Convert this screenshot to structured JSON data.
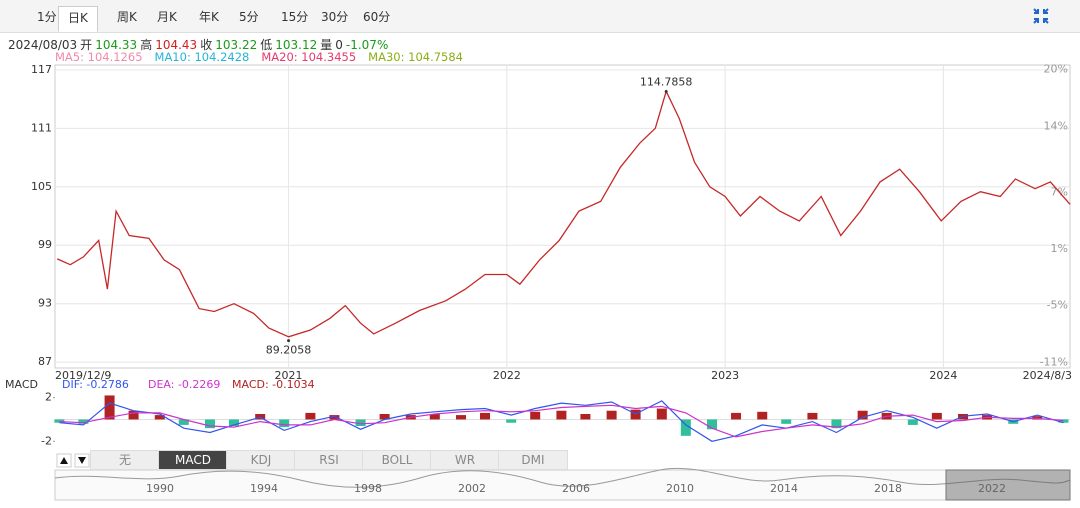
{
  "period_tabs": [
    "1分",
    "日K",
    "周K",
    "月K",
    "年K",
    "5分",
    "15分",
    "30分",
    "60分"
  ],
  "quote": {
    "date": "2024/08/03",
    "items": [
      {
        "label": "开",
        "value": 104.33,
        "color": "#1a9a1a"
      },
      {
        "label": "高",
        "value": 104.43,
        "color": "#d42020"
      },
      {
        "label": "收",
        "value": 103.22,
        "color": "#1a9a1a"
      },
      {
        "label": "低",
        "value": 103.12,
        "color": "#1a9a1a"
      },
      {
        "label": "量",
        "value": 0,
        "color": "#333333"
      }
    ],
    "change": "-1.07%",
    "change_color": "#1a9a1a"
  },
  "ma": [
    {
      "label": "MA5: 104.1265",
      "color": "#f08aa8"
    },
    {
      "label": "MA10: 104.2428",
      "color": "#27b5d6"
    },
    {
      "label": "MA20: 104.3455",
      "color": "#e8386d"
    },
    {
      "label": "MA30: 104.7584",
      "color": "#8aae14"
    }
  ],
  "chart_data": [
    {
      "type": "line",
      "x": [
        2019.94,
        2020.0,
        2020.06,
        2020.13,
        2020.17,
        2020.21,
        2020.27,
        2020.36,
        2020.43,
        2020.5,
        2020.59,
        2020.66,
        2020.75,
        2020.84,
        2020.91,
        2021.0,
        2021.1,
        2021.19,
        2021.26,
        2021.33,
        2021.39,
        2021.49,
        2021.6,
        2021.72,
        2021.81,
        2021.9,
        2022.0,
        2022.06,
        2022.15,
        2022.24,
        2022.33,
        2022.43,
        2022.52,
        2022.61,
        2022.68,
        2022.73,
        2022.79,
        2022.86,
        2022.93,
        2023.0,
        2023.07,
        2023.16,
        2023.25,
        2023.34,
        2023.44,
        2023.53,
        2023.62,
        2023.71,
        2023.8,
        2023.89,
        2023.99,
        2024.08,
        2024.17,
        2024.26,
        2024.33,
        2024.42,
        2024.49,
        2024.58
      ],
      "series": [
        {
          "color": "#c62828",
          "values": [
            97.6,
            97.0,
            97.8,
            99.5,
            94.5,
            102.5,
            100.0,
            99.7,
            97.5,
            96.5,
            92.5,
            92.2,
            93.0,
            92.0,
            90.5,
            89.6,
            90.3,
            91.5,
            92.8,
            91.0,
            89.9,
            91.0,
            92.3,
            93.3,
            94.5,
            96.0,
            96.0,
            95.0,
            97.5,
            99.5,
            102.5,
            103.5,
            107.0,
            109.5,
            111.0,
            114.8,
            112.0,
            107.5,
            105.0,
            104.0,
            102.0,
            104.0,
            102.5,
            101.5,
            104.0,
            100.0,
            102.5,
            105.5,
            106.8,
            104.5,
            101.5,
            103.5,
            104.5,
            104.0,
            105.8,
            104.8,
            105.5,
            103.2
          ]
        }
      ],
      "xlim": [
        2019.93,
        2024.58
      ],
      "xticks": [
        {
          "value": 2019.94,
          "label": "2019/12/9"
        },
        2021,
        2022,
        2023,
        2024,
        {
          "value": 2024.58,
          "label": "2024/8/3"
        }
      ],
      "ylim": [
        86.4,
        117.5
      ],
      "yticks": [
        117,
        111,
        105,
        99,
        93,
        87
      ],
      "y2lim": [
        -11.6,
        20.5
      ],
      "y2ticks": [
        {
          "value": 20,
          "label": "20%"
        },
        {
          "value": 14,
          "label": "14%"
        },
        {
          "value": 7,
          "label": "7%"
        },
        {
          "value": 1,
          "label": "1%"
        },
        {
          "value": -5,
          "label": "-5%"
        },
        {
          "value": -11,
          "label": "-11%"
        }
      ],
      "grid": true,
      "annotations": [
        {
          "value": 114.7858,
          "x": 2022.73
        },
        {
          "value": 89.2058,
          "x": 2021.0
        }
      ]
    },
    {
      "type": "macd",
      "title": "MACD",
      "x": [
        2019.95,
        2020.06,
        2020.18,
        2020.29,
        2020.41,
        2020.52,
        2020.64,
        2020.75,
        2020.87,
        2020.98,
        2021.1,
        2021.21,
        2021.33,
        2021.44,
        2021.56,
        2021.67,
        2021.79,
        2021.9,
        2022.02,
        2022.13,
        2022.25,
        2022.36,
        2022.48,
        2022.59,
        2022.71,
        2022.82,
        2022.94,
        2023.05,
        2023.17,
        2023.28,
        2023.4,
        2023.51,
        2023.63,
        2023.74,
        2023.86,
        2023.97,
        2024.09,
        2024.2,
        2024.32,
        2024.43,
        2024.55
      ],
      "series": [
        {
          "name": "DIF: -0.2786",
          "kind": "line",
          "color": "#3355ee",
          "values": [
            -0.3,
            -0.5,
            1.5,
            0.8,
            0.5,
            -0.8,
            -1.2,
            -0.5,
            0.2,
            -1.0,
            -0.2,
            0.3,
            -0.9,
            0.0,
            0.5,
            0.7,
            0.9,
            1.0,
            0.4,
            1.0,
            1.5,
            1.3,
            1.6,
            0.5,
            1.7,
            -0.5,
            -2.0,
            -1.5,
            -0.5,
            -0.8,
            -0.2,
            -1.2,
            0.2,
            0.8,
            0.2,
            -0.8,
            0.3,
            0.5,
            -0.2,
            0.4,
            -0.3
          ]
        },
        {
          "name": "DEA: -0.2269",
          "kind": "line",
          "color": "#cc33cc",
          "values": [
            -0.2,
            -0.3,
            0.2,
            0.6,
            0.6,
            0.0,
            -0.6,
            -0.7,
            -0.2,
            -0.5,
            -0.5,
            0.0,
            -0.4,
            -0.3,
            0.2,
            0.5,
            0.7,
            0.8,
            0.7,
            0.8,
            1.1,
            1.2,
            1.3,
            1.0,
            1.2,
            0.6,
            -0.8,
            -1.6,
            -1.1,
            -0.8,
            -0.5,
            -0.7,
            -0.4,
            0.3,
            0.4,
            -0.2,
            -0.1,
            0.2,
            0.1,
            0.1,
            -0.1
          ]
        },
        {
          "name": "MACD: -0.1034",
          "kind": "bar",
          "color": "#b22222",
          "negative_color": "#2fbf9b",
          "values": [
            -0.3,
            -0.4,
            2.2,
            0.8,
            0.4,
            -0.5,
            -0.8,
            -0.6,
            0.5,
            -0.7,
            0.6,
            0.4,
            -0.6,
            0.5,
            0.4,
            0.5,
            0.4,
            0.6,
            -0.3,
            0.7,
            0.8,
            0.5,
            0.8,
            0.9,
            1.0,
            -1.5,
            -0.9,
            0.6,
            0.7,
            -0.4,
            0.6,
            -0.8,
            0.8,
            0.6,
            -0.5,
            0.6,
            0.5,
            0.4,
            -0.4,
            0.3,
            -0.3
          ]
        }
      ],
      "xlim": [
        2019.93,
        2024.58
      ],
      "ylim": [
        -2.8,
        2.7
      ],
      "yticks": [
        2,
        -2
      ]
    }
  ],
  "indicator_tabs": [
    "无",
    "MACD",
    "KDJ",
    "RSI",
    "BOLL",
    "WR",
    "DMI"
  ],
  "navigator": {
    "years": [
      1990,
      1994,
      1998,
      2002,
      2006,
      2010,
      2014,
      2018,
      2022
    ]
  }
}
